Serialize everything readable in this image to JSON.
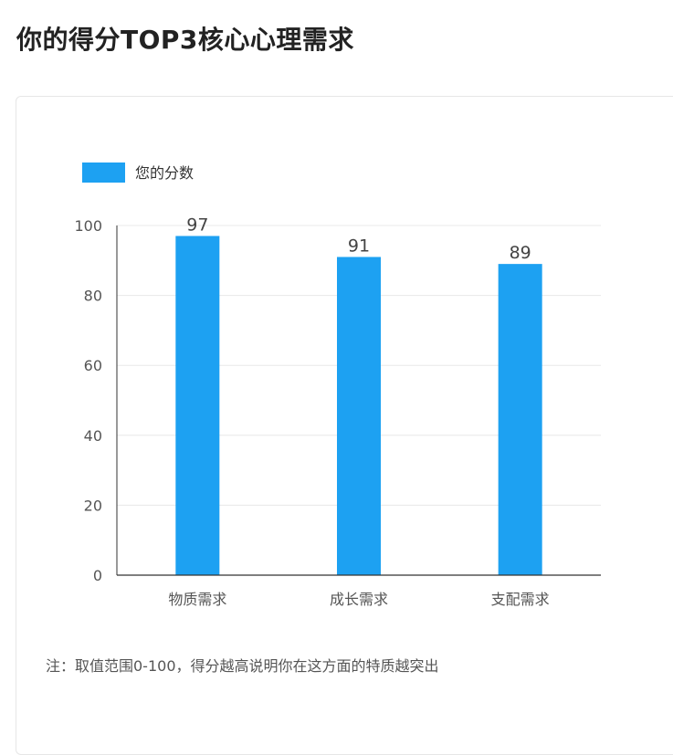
{
  "title": "你的得分TOP3核心心理需求",
  "note": "注：取值范围0-100，得分越高说明你在这方面的特质越突出",
  "colors": {
    "bar": "#1da1f2",
    "grid": "#e8e8e8",
    "axis": "#333333"
  },
  "chart_data": {
    "type": "bar",
    "categories": [
      "物质需求",
      "成长需求",
      "支配需求"
    ],
    "series": [
      {
        "name": "您的分数",
        "values": [
          97,
          91,
          89
        ]
      }
    ],
    "ylim": [
      0,
      100
    ],
    "yticks": [
      0,
      20,
      40,
      60,
      80,
      100
    ],
    "data_labels": [
      "97",
      "91",
      "89"
    ],
    "legend": "top-left",
    "grid": true
  }
}
